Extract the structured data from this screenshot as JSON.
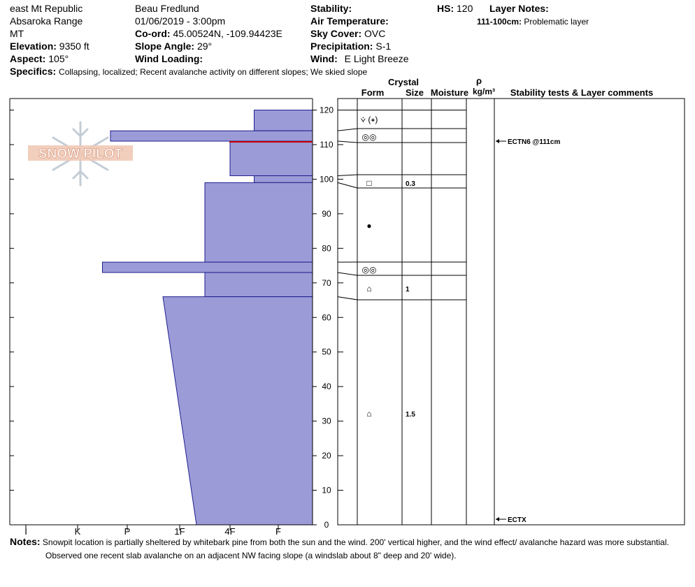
{
  "header": {
    "location": "east Mt Republic",
    "range": "Absaroka Range",
    "state": "MT",
    "elevation_label": "Elevation:",
    "elevation_value": "9350 ft",
    "aspect_label": "Aspect:",
    "aspect_value": "105°",
    "observer": "Beau  Fredlund",
    "datetime": "01/06/2019 - 3:00pm",
    "coord_label": "Co-ord:",
    "coord_value": "45.00524N, -109.94423E",
    "slope_label": "Slope Angle:",
    "slope_value": "29°",
    "wind_loading_label": "Wind Loading:",
    "wind_loading_value": "",
    "stability_label": "Stability:",
    "stability_value": "",
    "air_temp_label": "Air Temperature:",
    "air_temp_value": "",
    "sky_label": "Sky Cover:",
    "sky_value": "OVC",
    "precip_label": "Precipitation:",
    "precip_value": "S-1",
    "wind_label": "Wind:",
    "wind_value": "E Light Breeze",
    "hs_label": "HS:",
    "hs_value": "120",
    "layer_notes_label": "Layer Notes:",
    "layer_note_range": "111-100cm:",
    "layer_note_text": "Problematic layer",
    "specifics_label": "Specifics:",
    "specifics_value": "Collapsing, localized;  Recent avalanche activity on different slopes;  We skied slope"
  },
  "logo": {
    "text": "SNOW PILOT"
  },
  "table": {
    "crystal_header": "Crystal",
    "form_header": "Form",
    "size_header": "Size",
    "moisture_header": "Moisture",
    "rho_header": "ρ",
    "density_unit": "kg/m³",
    "comments_header": "Stability tests & Layer comments"
  },
  "layer_rows": [
    {
      "form": "⩒ (∗)",
      "size": ""
    },
    {
      "form": "◎◎",
      "size": ""
    },
    {
      "form": "□",
      "size": "0.3"
    },
    {
      "form": "●",
      "size": ""
    },
    {
      "form": "◎◎",
      "size": ""
    },
    {
      "form": "⌂",
      "size": "1"
    },
    {
      "form": "⌂",
      "size": "1.5"
    }
  ],
  "test_labels": [
    "ECTN6 @111cm",
    "ECTX"
  ],
  "notes": {
    "label": "Notes:",
    "line1": "Snowpit location is partially sheltered by whitebark pine from both the sun and the wind.  200' vertical higher, and the wind effect/ avalanche hazard was more substantial.",
    "line2": "Observed one recent slab avalanche on an adjacent NW facing slope (a windslab about 8\" deep and 20' wide)."
  },
  "chart_data": {
    "type": "bar",
    "title": "",
    "ylabel": "",
    "y_unit": "cm",
    "ylim": [
      0,
      120
    ],
    "y_ticks": [
      0,
      10,
      20,
      30,
      40,
      50,
      60,
      70,
      80,
      90,
      100,
      110,
      120
    ],
    "hardness_scale": [
      "I",
      "K",
      "P",
      "1F",
      "4F",
      "F"
    ],
    "hardness_direction": "hardness increases to the left",
    "fill_color": "#9b9bd7",
    "problem_layer_color": "#cc0000",
    "layers": [
      {
        "top": 120,
        "bottom": 114,
        "hardness": "4F-F"
      },
      {
        "top": 114,
        "bottom": 111,
        "hardness": "P+"
      },
      {
        "top": 111,
        "bottom": 101,
        "hardness": "4F"
      },
      {
        "top": 101,
        "bottom": 99,
        "hardness": "4F-F"
      },
      {
        "top": 99,
        "bottom": 76,
        "hardness": "1F-4F"
      },
      {
        "top": 76,
        "bottom": 73,
        "hardness": "K-P"
      },
      {
        "top": 73,
        "bottom": 66,
        "hardness": "1F-4F"
      },
      {
        "top": 66,
        "bottom": 0,
        "hardness": "1F",
        "top_hardness": "1F+",
        "bottom_hardness": "1F-"
      }
    ],
    "problem_layer_depth": 111,
    "stability_tests": [
      {
        "result": "ECTN6 @111cm",
        "depth": 111
      },
      {
        "result": "ECTX",
        "depth": 0
      }
    ]
  }
}
